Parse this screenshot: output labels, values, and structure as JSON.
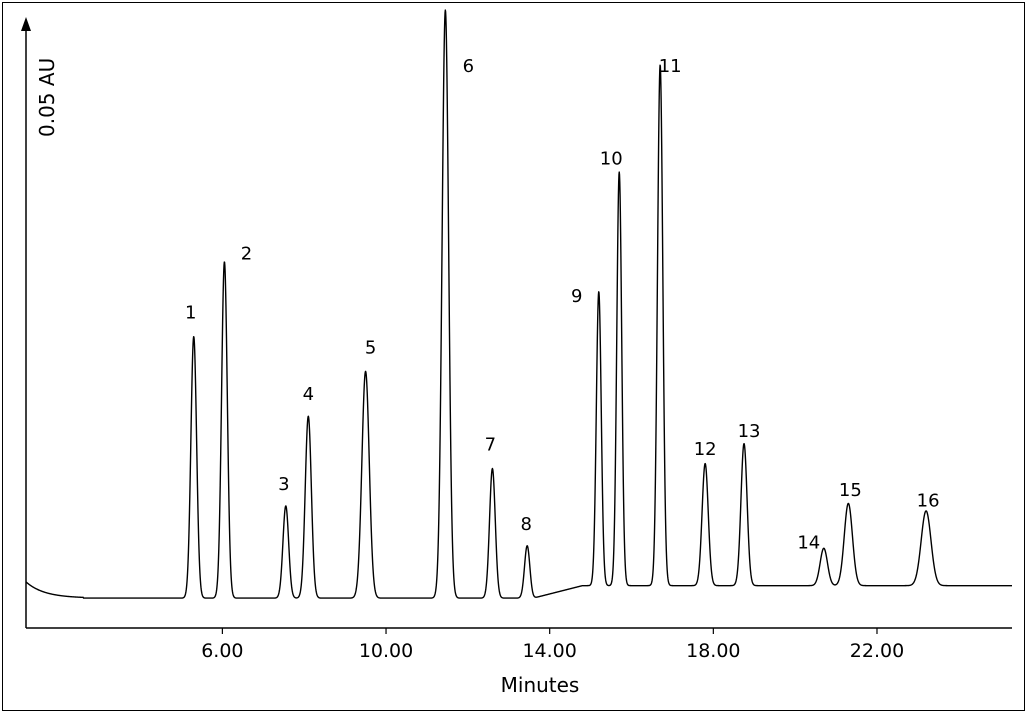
{
  "chart_data": {
    "type": "line",
    "title": "",
    "xlabel": "Minutes",
    "ylabel": "0.05 AU",
    "x_ticks": [
      6,
      10,
      14,
      18,
      22
    ],
    "x_tick_labels": [
      "6.00",
      "10.00",
      "14.00",
      "18.00",
      "22.00"
    ],
    "xlim": [
      1.2,
      25.3
    ],
    "ylim": [
      0,
      0.24
    ],
    "grid": false,
    "baseline": 0.012,
    "peaks": [
      {
        "label": "1",
        "x": 5.3,
        "y": 0.117,
        "width": 0.07
      },
      {
        "label": "2",
        "x": 6.05,
        "y": 0.147,
        "width": 0.07
      },
      {
        "label": "3",
        "x": 7.55,
        "y": 0.049,
        "width": 0.07
      },
      {
        "label": "4",
        "x": 8.1,
        "y": 0.085,
        "width": 0.075
      },
      {
        "label": "5",
        "x": 9.5,
        "y": 0.103,
        "width": 0.09
      },
      {
        "label": "6",
        "x": 11.45,
        "y": 0.248,
        "width": 0.08
      },
      {
        "label": "7",
        "x": 12.6,
        "y": 0.064,
        "width": 0.07
      },
      {
        "label": "8",
        "x": 13.45,
        "y": 0.033,
        "width": 0.065
      },
      {
        "label": "9",
        "x": 15.2,
        "y": 0.13,
        "width": 0.06
      },
      {
        "label": "10",
        "x": 15.7,
        "y": 0.178,
        "width": 0.06
      },
      {
        "label": "11",
        "x": 16.7,
        "y": 0.221,
        "width": 0.065
      },
      {
        "label": "12",
        "x": 17.8,
        "y": 0.061,
        "width": 0.075
      },
      {
        "label": "13",
        "x": 18.75,
        "y": 0.069,
        "width": 0.075
      },
      {
        "label": "14",
        "x": 20.7,
        "y": 0.027,
        "width": 0.09
      },
      {
        "label": "15",
        "x": 21.3,
        "y": 0.045,
        "width": 0.1
      },
      {
        "label": "16",
        "x": 23.2,
        "y": 0.042,
        "width": 0.12
      }
    ]
  }
}
